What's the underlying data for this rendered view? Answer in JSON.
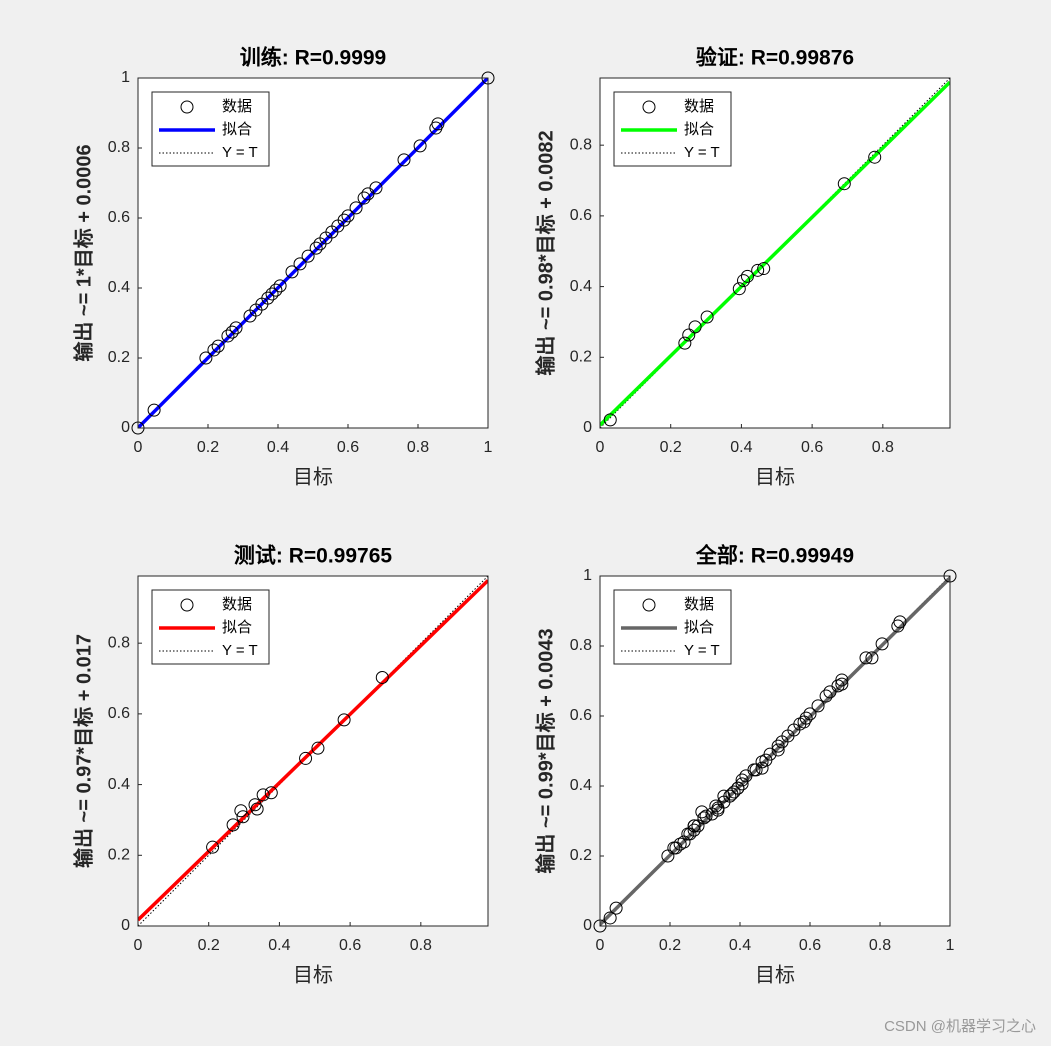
{
  "chart_data": [
    {
      "type": "scatter",
      "title": "训练: R=0.9999",
      "xlabel": "目标",
      "ylabel": "输出 ~= 1*目标 + 0.0006",
      "xlim": [
        0,
        1
      ],
      "ylim": [
        0,
        1
      ],
      "xticks": [
        0,
        0.2,
        0.4,
        0.6,
        0.8,
        1
      ],
      "yticks": [
        0,
        0.2,
        0.4,
        0.6,
        0.8,
        1
      ],
      "legend": "upper left",
      "series": [
        {
          "name": "数据",
          "color": "#000000",
          "x": [
            0,
            0.046,
            0.194,
            0.217,
            0.229,
            0.257,
            0.269,
            0.28,
            0.32,
            0.337,
            0.354,
            0.371,
            0.383,
            0.394,
            0.406,
            0.44,
            0.463,
            0.486,
            0.509,
            0.52,
            0.537,
            0.554,
            0.571,
            0.589,
            0.6,
            0.623,
            0.646,
            0.657,
            0.68,
            0.76,
            0.806,
            0.851,
            0.857,
            1
          ],
          "values": [
            0,
            0.051,
            0.2,
            0.223,
            0.234,
            0.263,
            0.274,
            0.286,
            0.32,
            0.337,
            0.354,
            0.371,
            0.383,
            0.394,
            0.406,
            0.446,
            0.469,
            0.491,
            0.514,
            0.526,
            0.543,
            0.56,
            0.577,
            0.594,
            0.606,
            0.629,
            0.657,
            0.669,
            0.686,
            0.766,
            0.806,
            0.857,
            0.869,
            1
          ]
        },
        {
          "name": "拟合",
          "color": "#0000ff",
          "slope": 1,
          "intercept": 0.0006
        },
        {
          "name": "Y = T",
          "color": "#000000",
          "slope": 1,
          "intercept": 0
        }
      ]
    },
    {
      "type": "scatter",
      "title": "验证: R=0.99876",
      "xlabel": "目标",
      "ylabel": "输出 ~= 0.98*目标 + 0.0082",
      "xlim": [
        0,
        0.99
      ],
      "ylim": [
        0,
        0.99
      ],
      "xticks": [
        0,
        0.2,
        0.4,
        0.6,
        0.8
      ],
      "yticks": [
        0,
        0.2,
        0.4,
        0.6,
        0.8
      ],
      "legend": "upper left",
      "series": [
        {
          "name": "数据",
          "color": "#000000",
          "x": [
            0.029,
            0.24,
            0.251,
            0.269,
            0.303,
            0.394,
            0.406,
            0.417,
            0.446,
            0.463,
            0.691,
            0.777
          ],
          "values": [
            0.023,
            0.24,
            0.263,
            0.286,
            0.314,
            0.394,
            0.417,
            0.429,
            0.446,
            0.451,
            0.691,
            0.766
          ]
        },
        {
          "name": "拟合",
          "color": "#00ff00",
          "slope": 0.98,
          "intercept": 0.0082
        },
        {
          "name": "Y = T",
          "color": "#000000",
          "slope": 1,
          "intercept": 0
        }
      ]
    },
    {
      "type": "scatter",
      "title": "测试: R=0.99765",
      "xlabel": "目标",
      "ylabel": "输出 ~= 0.97*目标 + 0.017",
      "xlim": [
        0,
        0.99
      ],
      "ylim": [
        0,
        0.99
      ],
      "xticks": [
        0,
        0.2,
        0.4,
        0.6,
        0.8
      ],
      "yticks": [
        0,
        0.2,
        0.4,
        0.6,
        0.8
      ],
      "legend": "upper left",
      "series": [
        {
          "name": "数据",
          "color": "#000000",
          "x": [
            0.211,
            0.269,
            0.291,
            0.297,
            0.331,
            0.337,
            0.354,
            0.377,
            0.474,
            0.509,
            0.583,
            0.691
          ],
          "values": [
            0.223,
            0.286,
            0.326,
            0.309,
            0.343,
            0.331,
            0.371,
            0.377,
            0.474,
            0.503,
            0.583,
            0.703
          ]
        },
        {
          "name": "拟合",
          "color": "#ff0000",
          "slope": 0.97,
          "intercept": 0.017
        },
        {
          "name": "Y = T",
          "color": "#000000",
          "slope": 1,
          "intercept": 0
        }
      ]
    },
    {
      "type": "scatter",
      "title": "全部: R=0.99949",
      "xlabel": "目标",
      "ylabel": "输出 ~= 0.99*目标 + 0.0043",
      "xlim": [
        0,
        1
      ],
      "ylim": [
        0,
        1
      ],
      "xticks": [
        0,
        0.2,
        0.4,
        0.6,
        0.8,
        1
      ],
      "yticks": [
        0,
        0.2,
        0.4,
        0.6,
        0.8,
        1
      ],
      "legend": "upper left",
      "series": [
        {
          "name": "数据",
          "color": "#000000",
          "x": [
            0,
            0.046,
            0.194,
            0.217,
            0.229,
            0.257,
            0.269,
            0.28,
            0.32,
            0.337,
            0.354,
            0.371,
            0.383,
            0.394,
            0.406,
            0.44,
            0.463,
            0.486,
            0.509,
            0.52,
            0.537,
            0.554,
            0.571,
            0.589,
            0.6,
            0.623,
            0.646,
            0.657,
            0.68,
            0.76,
            0.806,
            0.851,
            0.857,
            1,
            0.029,
            0.24,
            0.251,
            0.269,
            0.303,
            0.394,
            0.406,
            0.417,
            0.446,
            0.463,
            0.691,
            0.777,
            0.211,
            0.269,
            0.291,
            0.297,
            0.331,
            0.337,
            0.354,
            0.377,
            0.474,
            0.509,
            0.583,
            0.691
          ],
          "values": [
            0,
            0.051,
            0.2,
            0.223,
            0.234,
            0.263,
            0.274,
            0.286,
            0.32,
            0.337,
            0.354,
            0.371,
            0.383,
            0.394,
            0.406,
            0.446,
            0.469,
            0.491,
            0.514,
            0.526,
            0.543,
            0.56,
            0.577,
            0.594,
            0.606,
            0.629,
            0.657,
            0.669,
            0.686,
            0.766,
            0.806,
            0.857,
            0.869,
            1,
            0.023,
            0.24,
            0.263,
            0.286,
            0.314,
            0.394,
            0.417,
            0.429,
            0.446,
            0.451,
            0.691,
            0.766,
            0.223,
            0.286,
            0.326,
            0.309,
            0.343,
            0.331,
            0.371,
            0.377,
            0.474,
            0.503,
            0.583,
            0.703
          ]
        },
        {
          "name": "拟合",
          "color": "#666666",
          "slope": 0.99,
          "intercept": 0.0043
        },
        {
          "name": "Y = T",
          "color": "#000000",
          "slope": 1,
          "intercept": 0
        }
      ]
    }
  ],
  "watermark": "CSDN @机器学习之心"
}
